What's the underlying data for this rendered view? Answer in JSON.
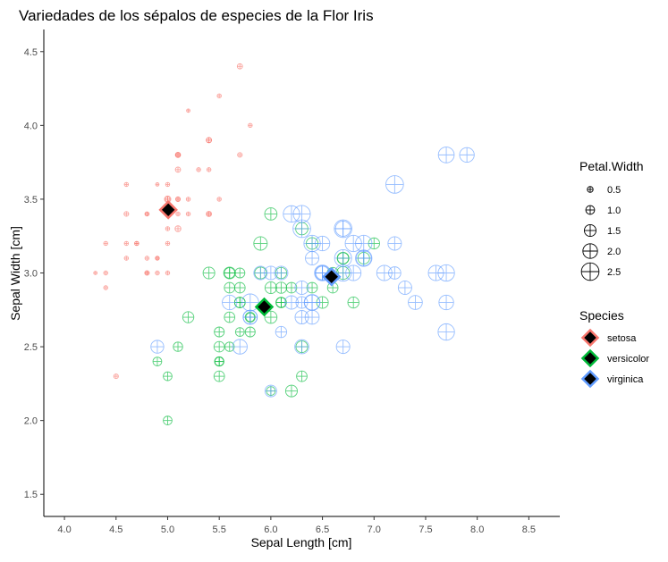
{
  "chart_data": {
    "type": "scatter",
    "title": "Variedades de los sépalos de especies de la Flor Iris",
    "xlabel": "Sepal Length [cm]",
    "ylabel": "Sepal Width [cm]",
    "xlim": [
      3.8,
      8.8
    ],
    "ylim": [
      1.35,
      4.65
    ],
    "xticks": [
      4.0,
      4.5,
      5.0,
      5.5,
      6.0,
      6.5,
      7.0,
      7.5,
      8.0,
      8.5
    ],
    "yticks": [
      1.5,
      2.0,
      2.5,
      3.0,
      3.5,
      4.0,
      4.5
    ],
    "grid": false,
    "point_shape": "circle-plus",
    "centroid_shape": "diamond",
    "size_legend": {
      "title": "Petal.Width",
      "values": [
        0.5,
        1.0,
        1.5,
        2.0,
        2.5
      ]
    },
    "color_legend": {
      "title": "Species"
    },
    "series": [
      {
        "name": "setosa",
        "color": "#F8766D",
        "centroid": [
          5.006,
          3.428
        ],
        "points": [
          [
            5.1,
            3.5,
            0.2
          ],
          [
            4.9,
            3.0,
            0.2
          ],
          [
            4.7,
            3.2,
            0.2
          ],
          [
            4.6,
            3.1,
            0.2
          ],
          [
            5.0,
            3.6,
            0.2
          ],
          [
            5.4,
            3.9,
            0.4
          ],
          [
            4.6,
            3.4,
            0.3
          ],
          [
            5.0,
            3.4,
            0.2
          ],
          [
            4.4,
            2.9,
            0.2
          ],
          [
            4.9,
            3.1,
            0.1
          ],
          [
            5.4,
            3.7,
            0.2
          ],
          [
            4.8,
            3.4,
            0.2
          ],
          [
            4.8,
            3.0,
            0.1
          ],
          [
            4.3,
            3.0,
            0.1
          ],
          [
            5.8,
            4.0,
            0.2
          ],
          [
            5.7,
            4.4,
            0.4
          ],
          [
            5.4,
            3.9,
            0.4
          ],
          [
            5.1,
            3.5,
            0.3
          ],
          [
            5.7,
            3.8,
            0.3
          ],
          [
            5.1,
            3.8,
            0.3
          ],
          [
            5.4,
            3.4,
            0.2
          ],
          [
            5.1,
            3.7,
            0.4
          ],
          [
            4.6,
            3.6,
            0.2
          ],
          [
            5.1,
            3.3,
            0.5
          ],
          [
            4.8,
            3.4,
            0.2
          ],
          [
            5.0,
            3.0,
            0.2
          ],
          [
            5.0,
            3.4,
            0.4
          ],
          [
            5.2,
            3.5,
            0.2
          ],
          [
            5.2,
            3.4,
            0.2
          ],
          [
            4.7,
            3.2,
            0.2
          ],
          [
            4.8,
            3.1,
            0.2
          ],
          [
            5.4,
            3.4,
            0.4
          ],
          [
            5.2,
            4.1,
            0.1
          ],
          [
            5.5,
            4.2,
            0.2
          ],
          [
            4.9,
            3.1,
            0.2
          ],
          [
            5.0,
            3.2,
            0.2
          ],
          [
            5.5,
            3.5,
            0.2
          ],
          [
            4.9,
            3.6,
            0.1
          ],
          [
            4.4,
            3.0,
            0.2
          ],
          [
            5.1,
            3.4,
            0.2
          ],
          [
            5.0,
            3.5,
            0.3
          ],
          [
            4.5,
            2.3,
            0.3
          ],
          [
            4.4,
            3.2,
            0.2
          ],
          [
            5.0,
            3.5,
            0.6
          ],
          [
            5.1,
            3.8,
            0.4
          ],
          [
            4.8,
            3.0,
            0.3
          ],
          [
            5.1,
            3.8,
            0.2
          ],
          [
            4.6,
            3.2,
            0.2
          ],
          [
            5.3,
            3.7,
            0.2
          ],
          [
            5.0,
            3.3,
            0.2
          ]
        ]
      },
      {
        "name": "versicolor",
        "color": "#00BA38",
        "centroid": [
          5.936,
          2.77
        ],
        "points": [
          [
            7.0,
            3.2,
            1.4
          ],
          [
            6.4,
            3.2,
            1.5
          ],
          [
            6.9,
            3.1,
            1.5
          ],
          [
            5.5,
            2.3,
            1.3
          ],
          [
            6.5,
            2.8,
            1.5
          ],
          [
            5.7,
            2.8,
            1.3
          ],
          [
            6.3,
            3.3,
            1.6
          ],
          [
            4.9,
            2.4,
            1.0
          ],
          [
            6.6,
            2.9,
            1.3
          ],
          [
            5.2,
            2.7,
            1.4
          ],
          [
            5.0,
            2.0,
            1.0
          ],
          [
            5.9,
            3.0,
            1.5
          ],
          [
            6.0,
            2.2,
            1.0
          ],
          [
            6.1,
            2.9,
            1.4
          ],
          [
            5.6,
            2.9,
            1.3
          ],
          [
            6.7,
            3.1,
            1.4
          ],
          [
            5.6,
            3.0,
            1.5
          ],
          [
            5.8,
            2.7,
            1.0
          ],
          [
            6.2,
            2.2,
            1.5
          ],
          [
            5.6,
            2.5,
            1.1
          ],
          [
            5.9,
            3.2,
            1.8
          ],
          [
            6.1,
            2.8,
            1.3
          ],
          [
            6.3,
            2.5,
            1.5
          ],
          [
            6.1,
            2.8,
            1.2
          ],
          [
            6.4,
            2.9,
            1.3
          ],
          [
            6.6,
            3.0,
            1.4
          ],
          [
            6.8,
            2.8,
            1.4
          ],
          [
            6.7,
            3.0,
            1.7
          ],
          [
            6.0,
            2.9,
            1.5
          ],
          [
            5.7,
            2.6,
            1.0
          ],
          [
            5.5,
            2.4,
            1.1
          ],
          [
            5.5,
            2.4,
            1.0
          ],
          [
            5.8,
            2.7,
            1.2
          ],
          [
            6.0,
            2.7,
            1.6
          ],
          [
            5.4,
            3.0,
            1.5
          ],
          [
            6.0,
            3.4,
            1.6
          ],
          [
            6.7,
            3.1,
            1.5
          ],
          [
            6.3,
            2.3,
            1.3
          ],
          [
            5.6,
            3.0,
            1.3
          ],
          [
            5.5,
            2.5,
            1.3
          ],
          [
            5.5,
            2.6,
            1.2
          ],
          [
            6.1,
            3.0,
            1.4
          ],
          [
            5.8,
            2.6,
            1.2
          ],
          [
            5.0,
            2.3,
            1.0
          ],
          [
            5.6,
            2.7,
            1.3
          ],
          [
            5.7,
            3.0,
            1.2
          ],
          [
            5.7,
            2.9,
            1.3
          ],
          [
            6.2,
            2.9,
            1.3
          ],
          [
            5.1,
            2.5,
            1.1
          ],
          [
            5.7,
            2.8,
            1.3
          ]
        ]
      },
      {
        "name": "virginica",
        "color": "#619CFF",
        "centroid": [
          6.588,
          2.974
        ],
        "points": [
          [
            6.3,
            3.3,
            2.5
          ],
          [
            5.8,
            2.7,
            1.9
          ],
          [
            7.1,
            3.0,
            2.1
          ],
          [
            6.3,
            2.9,
            1.8
          ],
          [
            6.5,
            3.0,
            2.2
          ],
          [
            7.6,
            3.0,
            2.1
          ],
          [
            4.9,
            2.5,
            1.7
          ],
          [
            7.3,
            2.9,
            1.8
          ],
          [
            6.7,
            2.5,
            1.8
          ],
          [
            7.2,
            3.6,
            2.5
          ],
          [
            6.5,
            3.2,
            2.0
          ],
          [
            6.4,
            2.7,
            1.9
          ],
          [
            6.8,
            3.0,
            2.1
          ],
          [
            5.7,
            2.5,
            2.0
          ],
          [
            5.8,
            2.8,
            2.4
          ],
          [
            6.4,
            3.2,
            2.3
          ],
          [
            6.5,
            3.0,
            1.8
          ],
          [
            7.7,
            3.8,
            2.2
          ],
          [
            7.7,
            2.6,
            2.3
          ],
          [
            6.0,
            2.2,
            1.5
          ],
          [
            6.9,
            3.2,
            2.3
          ],
          [
            5.6,
            2.8,
            2.0
          ],
          [
            7.7,
            2.8,
            2.0
          ],
          [
            6.3,
            2.7,
            1.8
          ],
          [
            6.7,
            3.3,
            2.1
          ],
          [
            7.2,
            3.2,
            1.8
          ],
          [
            6.2,
            2.8,
            1.8
          ],
          [
            6.1,
            3.0,
            1.8
          ],
          [
            6.4,
            2.8,
            2.1
          ],
          [
            7.2,
            3.0,
            1.6
          ],
          [
            7.4,
            2.8,
            1.9
          ],
          [
            7.9,
            3.8,
            2.0
          ],
          [
            6.4,
            2.8,
            2.2
          ],
          [
            6.3,
            2.8,
            1.5
          ],
          [
            6.1,
            2.6,
            1.4
          ],
          [
            7.7,
            3.0,
            2.3
          ],
          [
            6.3,
            3.4,
            2.4
          ],
          [
            6.4,
            3.1,
            1.8
          ],
          [
            6.0,
            3.0,
            1.8
          ],
          [
            6.9,
            3.1,
            2.1
          ],
          [
            6.7,
            3.1,
            2.4
          ],
          [
            6.9,
            3.1,
            2.3
          ],
          [
            5.8,
            2.7,
            1.9
          ],
          [
            6.8,
            3.2,
            2.3
          ],
          [
            6.7,
            3.3,
            2.5
          ],
          [
            6.7,
            3.0,
            2.3
          ],
          [
            6.3,
            2.5,
            1.9
          ],
          [
            6.5,
            3.0,
            2.0
          ],
          [
            6.2,
            3.4,
            2.3
          ],
          [
            5.9,
            3.0,
            1.8
          ]
        ]
      }
    ]
  }
}
